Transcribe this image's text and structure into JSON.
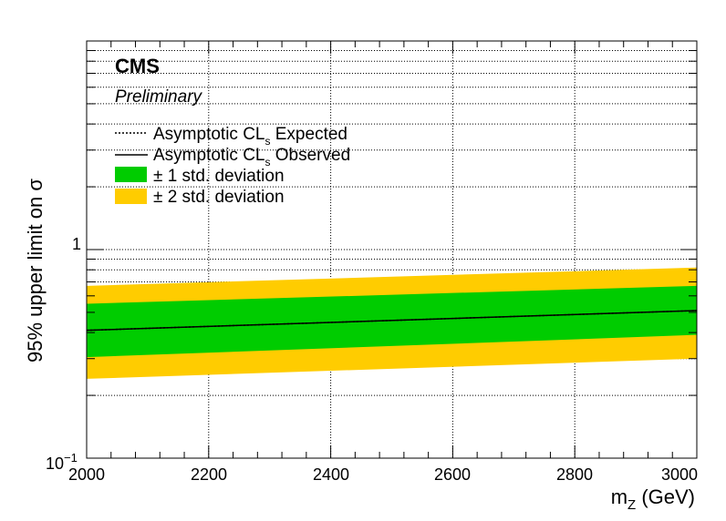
{
  "chart_data": {
    "type": "area",
    "x": [
      2000,
      3000
    ],
    "xlim": [
      2000,
      3000
    ],
    "ylim": [
      0.1,
      10
    ],
    "y_scale": "log",
    "grid": true,
    "legend_placement": "top-left",
    "xlabel": "m",
    "xlabel_sub": "Z",
    "xlabel_unit": " (GeV)",
    "ylabel": "95% upper limit on  σ",
    "experiment": "CMS",
    "status": "Preliminary",
    "x_tick_labels": [
      "2000",
      "2200",
      "2400",
      "2600",
      "2800",
      "3000"
    ],
    "y_tick_labels": {
      "one": "1",
      "tenth_base": "10",
      "tenth_exp": "−1"
    },
    "legend": {
      "expected": {
        "pre": "Asymptotic CL",
        "sub": "s",
        "post": " Expected"
      },
      "observed": {
        "pre": "Asymptotic CL",
        "sub": "s",
        "post": " Observed"
      },
      "one_sigma": "± 1 std. deviation",
      "two_sigma": "± 2 std. deviation"
    },
    "series": {
      "expected": [
        0.41,
        0.51
      ],
      "observed": [
        0.41,
        0.51
      ],
      "band_1sigma_low": [
        0.305,
        0.39
      ],
      "band_1sigma_high": [
        0.55,
        0.67
      ],
      "band_2sigma_low": [
        0.24,
        0.3
      ],
      "band_2sigma_high": [
        0.67,
        0.82
      ]
    },
    "colors": {
      "band_1sigma": "#00cc00",
      "band_2sigma": "#ffcc00",
      "line": "#000000",
      "grid": "#000000"
    }
  }
}
